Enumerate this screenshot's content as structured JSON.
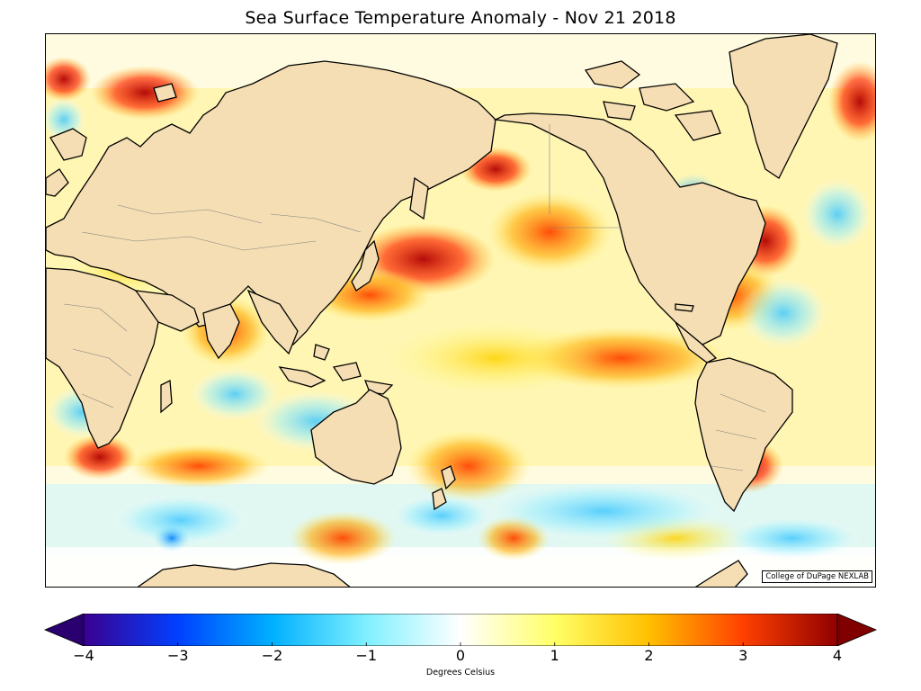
{
  "title": "Sea Surface Temperature Anomaly - Nov 21 2018",
  "credit": "College of DuPage NEXLAB",
  "colorbar": {
    "label": "Degrees Celsius",
    "min": -4,
    "max": 4,
    "ticks": [
      {
        "value": -4,
        "label": "−4"
      },
      {
        "value": -3,
        "label": "−3"
      },
      {
        "value": -2,
        "label": "−2"
      },
      {
        "value": -1,
        "label": "−1"
      },
      {
        "value": 0,
        "label": "0"
      },
      {
        "value": 1,
        "label": "1"
      },
      {
        "value": 2,
        "label": "2"
      },
      {
        "value": 3,
        "label": "3"
      },
      {
        "value": 4,
        "label": "4"
      }
    ],
    "colors": [
      "#3a0090",
      "#0040ff",
      "#00b0ff",
      "#7ff0ff",
      "#ffffff",
      "#ffff66",
      "#ffc000",
      "#ff4000",
      "#900000"
    ]
  },
  "map": {
    "land_color": "#f5deb3",
    "coastline_color": "#000000",
    "border_color": "#808080"
  }
}
